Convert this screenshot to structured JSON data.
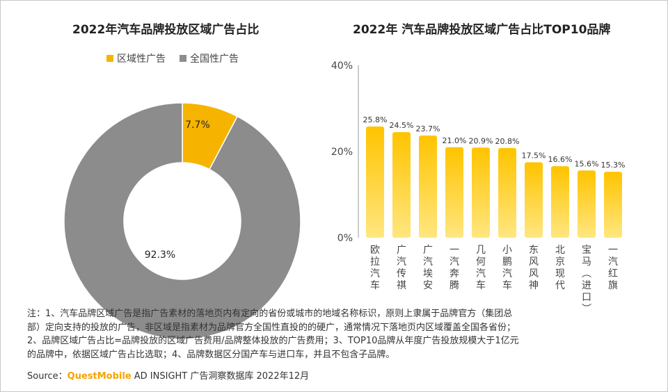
{
  "left_title": "2022年汽车品牌投放区域广告占比",
  "right_title": "2022年 汽车品牌投放区域广告占比TOP10品牌",
  "legend": [
    {
      "label": "区域性广告",
      "color": "#f6b400"
    },
    {
      "label": "全国性广告",
      "color": "#8c8c8c"
    }
  ],
  "notes": [
    "注：1、汽车品牌区域广告是指广告素材的落地页内有定向的省份或城市的地域名称标识，原则上隶属于品牌官方（集团总",
    "部）定向支持的投放的广告，非区域是指素材为品牌官方全国性直投的的硬广，通常情况下落地页内区域覆盖全国各省份；",
    "2、品牌区域广告占比=品牌投放的区域广告费用/品牌整体投放的广告费用；3、TOP10品牌从年度广告投放规模大于1亿元",
    "的品牌中，依据区域广告占比选取；4、品牌数据区分国产车与进口车，并且不包含子品牌。"
  ],
  "source": {
    "prefix": "Source：",
    "brand": "QuestMobile",
    "suffix": " AD INSIGHT 广告洞察数据库 2022年12月"
  },
  "chart_data": [
    {
      "type": "pie",
      "title": "2022年汽车品牌投放区域广告占比",
      "labels": [
        "区域性广告",
        "全国性广告"
      ],
      "values": [
        7.7,
        92.3
      ],
      "value_labels": [
        "7.7%",
        "92.3%"
      ],
      "colors": [
        "#f6b400",
        "#8c8c8c"
      ],
      "donut": true,
      "legend": "top"
    },
    {
      "type": "bar",
      "title": "2022年 汽车品牌投放区域广告占比TOP10品牌",
      "categories": [
        "欧拉汽车",
        "广汽传祺",
        "广汽埃安",
        "一汽奔腾",
        "几何汽车",
        "小鹏汽车",
        "东风风神",
        "北京现代",
        "宝马(进口)",
        "一汽红旗"
      ],
      "values": [
        25.8,
        24.5,
        23.7,
        21.0,
        20.9,
        20.8,
        17.5,
        16.6,
        15.6,
        15.3
      ],
      "value_labels": [
        "25.8%",
        "24.5%",
        "23.7%",
        "21.0%",
        "20.9%",
        "20.8%",
        "17.5%",
        "16.6%",
        "15.6%",
        "15.3%"
      ],
      "yticks": [
        "0%",
        "20%",
        "40%"
      ],
      "ylim": [
        0,
        40
      ],
      "bar_color": "#f6b400",
      "grid": false
    }
  ]
}
